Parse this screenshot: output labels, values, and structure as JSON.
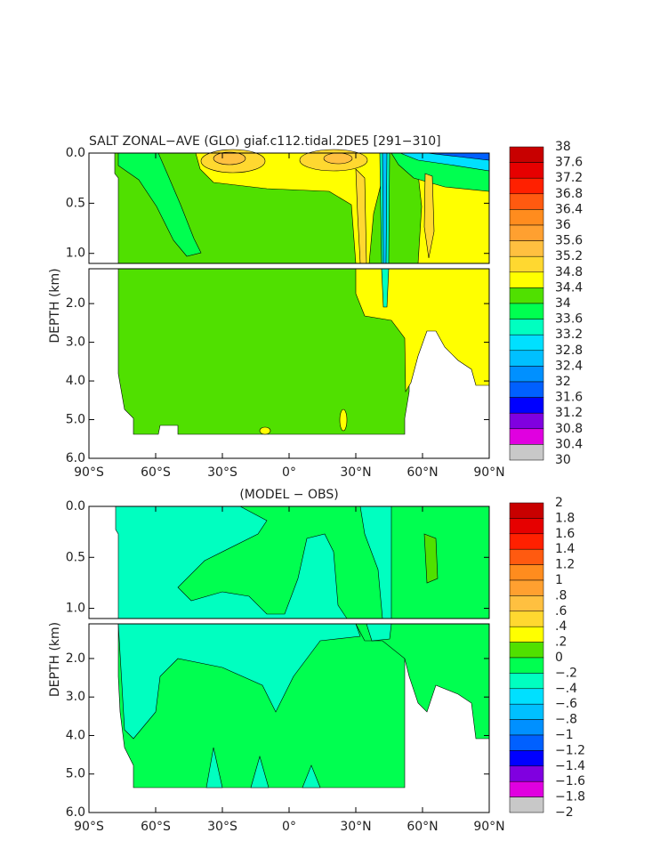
{
  "chart_data": [
    {
      "type": "contour",
      "title": "SALT ZONAL−AVE (GLO) giaf.c112.tidal.2DE5 [291−310]",
      "ylabel": "DEPTH (km)",
      "xlim": [
        -90,
        90
      ],
      "xticks": [
        {
          "value": -90,
          "label": "90°S"
        },
        {
          "value": -60,
          "label": "60°S"
        },
        {
          "value": -30,
          "label": "30°S"
        },
        {
          "value": 0,
          "label": "0°"
        },
        {
          "value": 30,
          "label": "30°N"
        },
        {
          "value": 60,
          "label": "60°N"
        },
        {
          "value": 90,
          "label": "90°N"
        }
      ],
      "ylim": [
        0,
        6
      ],
      "yticks": [
        {
          "value": 0,
          "label": "0.0"
        },
        0.5,
        {
          "value": 1,
          "label": "1.0"
        },
        {
          "value": 2,
          "label": "2.0"
        },
        {
          "value": 3,
          "label": "3.0"
        },
        {
          "value": 4,
          "label": "4.0"
        },
        {
          "value": 5,
          "label": "5.0"
        },
        {
          "value": 6,
          "label": "6.0"
        }
      ],
      "levels": [
        38,
        37.6,
        37.2,
        36.8,
        36.4,
        36,
        35.6,
        35.2,
        34.8,
        34.4,
        34,
        33.6,
        33.2,
        32.8,
        32.4,
        32,
        31.6,
        31.2,
        30.8,
        30.4,
        30
      ],
      "colors": [
        "#c80000",
        "#e60000",
        "#ff2000",
        "#ff5a10",
        "#ff8c1e",
        "#ffa030",
        "#ffc040",
        "#ffd830",
        "#ffff00",
        "#50e000",
        "#00ff50",
        "#00ffc0",
        "#00e0ff",
        "#00c0ff",
        "#0090ff",
        "#0060ff",
        "#0000ff",
        "#8000e0",
        "#e000e0",
        "#c8c8c8",
        "#707070"
      ]
    },
    {
      "type": "contour",
      "title": "(MODEL − OBS)",
      "ylabel": "DEPTH (km)",
      "xlim": [
        -90,
        90
      ],
      "xticks": [
        {
          "value": -90,
          "label": "90°S"
        },
        {
          "value": -60,
          "label": "60°S"
        },
        {
          "value": -30,
          "label": "30°S"
        },
        {
          "value": 0,
          "label": "0°"
        },
        {
          "value": 30,
          "label": "30°N"
        },
        {
          "value": 60,
          "label": "60°N"
        },
        {
          "value": 90,
          "label": "90°N"
        }
      ],
      "ylim": [
        0,
        6
      ],
      "yticks": [
        {
          "value": 0,
          "label": "0.0"
        },
        0.5,
        {
          "value": 1,
          "label": "1.0"
        },
        {
          "value": 2,
          "label": "2.0"
        },
        {
          "value": 3,
          "label": "3.0"
        },
        {
          "value": 4,
          "label": "4.0"
        },
        {
          "value": 5,
          "label": "5.0"
        },
        {
          "value": 6,
          "label": "6.0"
        }
      ],
      "levels": [
        2,
        1.8,
        1.6,
        1.4,
        1.2,
        1,
        {
          "value": 0.8,
          "label": ".8"
        },
        {
          "value": 0.6,
          "label": ".6"
        },
        {
          "value": 0.4,
          "label": ".4"
        },
        {
          "value": 0.2,
          "label": ".2"
        },
        0,
        {
          "value": -0.2,
          "label": "−.2"
        },
        {
          "value": -0.4,
          "label": "−.4"
        },
        {
          "value": -0.6,
          "label": "−.6"
        },
        {
          "value": -0.8,
          "label": "−.8"
        },
        {
          "value": -1,
          "label": "−1"
        },
        {
          "value": -1.2,
          "label": "−1.2"
        },
        {
          "value": -1.4,
          "label": "−1.4"
        },
        {
          "value": -1.6,
          "label": "−1.6"
        },
        {
          "value": -1.8,
          "label": "−1.8"
        },
        {
          "value": -2,
          "label": "−2"
        }
      ],
      "colors": [
        "#c80000",
        "#e60000",
        "#ff2000",
        "#ff5a10",
        "#ff8c1e",
        "#ffa030",
        "#ffc040",
        "#ffd830",
        "#ffff00",
        "#50e000",
        "#00ff50",
        "#00ffc0",
        "#00e0ff",
        "#00c0ff",
        "#0090ff",
        "#0060ff",
        "#0000ff",
        "#8000e0",
        "#e000e0",
        "#c8c8c8",
        "#707070"
      ]
    }
  ]
}
